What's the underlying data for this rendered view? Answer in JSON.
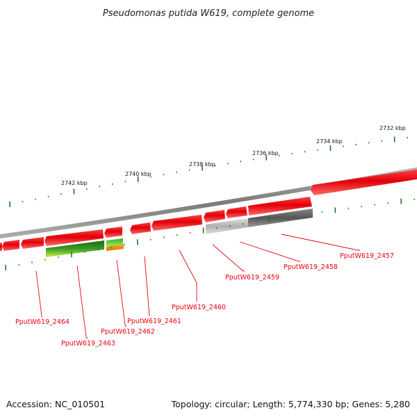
{
  "title": "Pseudomonas putida W619, complete genome",
  "footer": {
    "accession": "Accession: NC_010501",
    "summary": "Topology: circular; Length: 5,774,330 bp; Genes: 5,280"
  },
  "scale_labels": [
    "2732 kbp",
    "2734 kbp",
    "2736 kbp",
    "2738 kbp",
    "2740 kbp",
    "2742 kbp"
  ],
  "gene_labels": [
    "PputW619_2457",
    "PputW619_2458",
    "PputW619_2459",
    "PputW619_2460",
    "PputW619_2461",
    "PputW619_2462",
    "PputW619_2463",
    "PputW619_2464"
  ],
  "colors": {
    "backbone": "#7a7a7a",
    "cds": "#e8000b",
    "label": "#e8000b",
    "tick": "#1a7a1a",
    "gene_dark": "#555555",
    "gene_light": "#b0b0b0",
    "green_dark": "#2e7d1f",
    "green_light": "#c6f04a",
    "orange": "#f08a00"
  }
}
